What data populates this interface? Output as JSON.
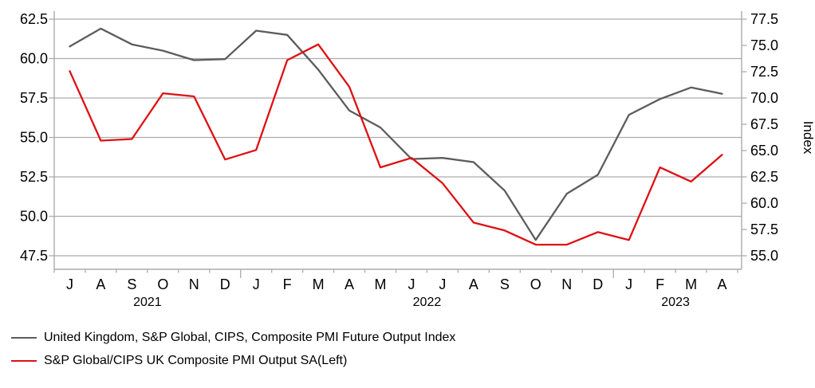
{
  "chart_data": {
    "type": "line",
    "title": "",
    "x": {
      "months": [
        "J",
        "A",
        "S",
        "O",
        "N",
        "D",
        "J",
        "F",
        "M",
        "A",
        "M",
        "J",
        "J",
        "A",
        "S",
        "O",
        "N",
        "D",
        "J",
        "F",
        "M",
        "A"
      ],
      "years": [
        {
          "label": "2021",
          "from_index": 0,
          "to_index": 5
        },
        {
          "label": "2022",
          "from_index": 6,
          "to_index": 17
        },
        {
          "label": "2023",
          "from_index": 18,
          "to_index": 21
        }
      ]
    },
    "left_axis": {
      "range": [
        47.5,
        62.5
      ],
      "step": 2.5,
      "tick_labels": [
        "62.5",
        "60.0",
        "57.5",
        "55.0",
        "52.5",
        "50.0",
        "47.5"
      ]
    },
    "right_axis": {
      "range": [
        55.0,
        77.5
      ],
      "step": 2.5,
      "title": "Index",
      "tick_labels": [
        "77.5",
        "75.0",
        "72.5",
        "70.0",
        "67.5",
        "65.0",
        "62.5",
        "60.0",
        "57.5",
        "55.0"
      ]
    },
    "grid": "horizontal",
    "legend_position": "bottom-left",
    "series": [
      {
        "name": "United Kingdom, S&P Global, CIPS, Composite PMI Future Output Index",
        "axis": "right",
        "color": "#5b5c5e",
        "values": [
          74.9,
          76.6,
          75.1,
          74.5,
          73.6,
          73.7,
          76.4,
          76.0,
          72.7,
          68.8,
          67.2,
          64.2,
          64.3,
          63.9,
          61.2,
          56.5,
          60.9,
          62.7,
          68.4,
          69.9,
          71.0,
          70.4
        ]
      },
      {
        "name": "S&P Global/CIPS UK Composite PMI Output SA(Left)",
        "axis": "left",
        "color": "#de1014",
        "values": [
          59.2,
          54.8,
          54.9,
          57.8,
          57.6,
          53.6,
          54.2,
          59.9,
          60.9,
          58.2,
          53.1,
          53.7,
          52.1,
          49.6,
          49.1,
          48.2,
          48.2,
          49.0,
          48.5,
          53.1,
          52.2,
          53.9
        ]
      }
    ],
    "colors": {
      "grid_line": "#acacae",
      "axis_line": "#acacae",
      "text": "#000000"
    }
  }
}
